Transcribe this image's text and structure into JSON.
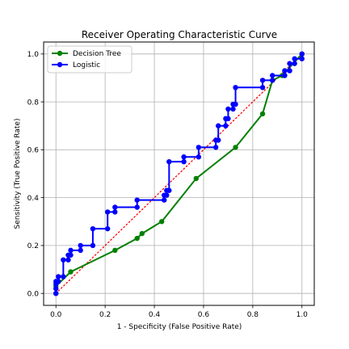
{
  "chart_data": {
    "type": "line",
    "title": "Receiver Operating Characteristic Curve",
    "xlabel": "1 - Specificity (False Positive Rate)",
    "ylabel": "Sensitivity (True Positive Rate)",
    "xlim": [
      -0.05,
      1.05
    ],
    "ylim": [
      -0.05,
      1.05
    ],
    "xticks": [
      "0.0",
      "0.2",
      "0.4",
      "0.6",
      "0.8",
      "1.0"
    ],
    "yticks": [
      "0.0",
      "0.2",
      "0.4",
      "0.6",
      "0.8",
      "1.0"
    ],
    "grid": true,
    "legend_position": "top-left",
    "reference_line": {
      "x": [
        0,
        1
      ],
      "y": [
        0,
        1
      ],
      "color": "#ff0000",
      "style": "dotted"
    },
    "series": [
      {
        "name": "Decision Tree",
        "color": "#008000",
        "x": [
          0.0,
          0.0,
          0.06,
          0.24,
          0.33,
          0.35,
          0.43,
          0.57,
          0.73,
          0.84,
          0.88,
          0.92,
          1.0
        ],
        "y": [
          0.0,
          0.03,
          0.09,
          0.18,
          0.23,
          0.25,
          0.3,
          0.48,
          0.61,
          0.75,
          0.89,
          0.91,
          1.0
        ]
      },
      {
        "name": "Logistic",
        "color": "#0000ff",
        "x": [
          0.0,
          0.0,
          0.0,
          0.0,
          0.01,
          0.01,
          0.03,
          0.03,
          0.05,
          0.05,
          0.06,
          0.06,
          0.1,
          0.1,
          0.15,
          0.15,
          0.21,
          0.21,
          0.24,
          0.24,
          0.33,
          0.33,
          0.44,
          0.44,
          0.45,
          0.45,
          0.46,
          0.46,
          0.52,
          0.52,
          0.58,
          0.58,
          0.65,
          0.65,
          0.66,
          0.66,
          0.69,
          0.69,
          0.7,
          0.7,
          0.72,
          0.72,
          0.73,
          0.73,
          0.84,
          0.84,
          0.88,
          0.88,
          0.93,
          0.93,
          0.95,
          0.95,
          0.97,
          0.97,
          1.0,
          1.0
        ],
        "y": [
          0.0,
          0.02,
          0.04,
          0.05,
          0.05,
          0.07,
          0.07,
          0.14,
          0.14,
          0.16,
          0.16,
          0.18,
          0.18,
          0.2,
          0.2,
          0.27,
          0.27,
          0.34,
          0.34,
          0.36,
          0.36,
          0.39,
          0.39,
          0.41,
          0.41,
          0.43,
          0.43,
          0.55,
          0.55,
          0.57,
          0.57,
          0.61,
          0.61,
          0.64,
          0.64,
          0.7,
          0.7,
          0.73,
          0.73,
          0.77,
          0.77,
          0.79,
          0.79,
          0.86,
          0.86,
          0.89,
          0.89,
          0.91,
          0.91,
          0.93,
          0.93,
          0.96,
          0.96,
          0.98,
          0.98,
          1.0
        ]
      }
    ]
  }
}
